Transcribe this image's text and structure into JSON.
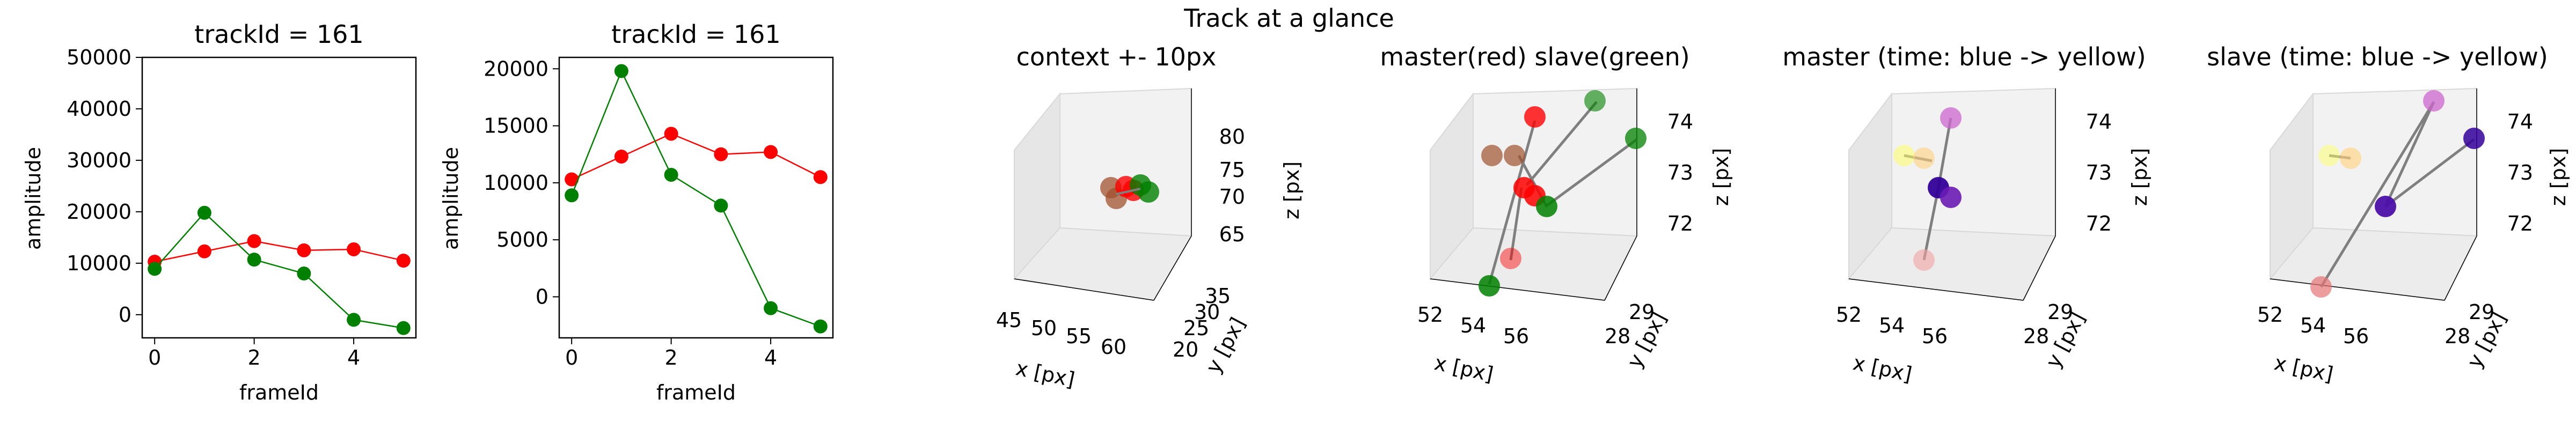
{
  "suptitle": "Track at a glance",
  "colors": {
    "master": "#ff0000",
    "slave": "#008000",
    "time_start": "#ffff66",
    "time_mid": "#cc66cc",
    "time_end": "#330099",
    "pane": "#f2f2f2",
    "link": "#7f7f7f"
  },
  "chart_data": [
    {
      "type": "line",
      "title": "trackId = 161",
      "xlabel": "frameId",
      "ylabel": "amplitude",
      "x": [
        0,
        1,
        2,
        3,
        4,
        5
      ],
      "xticks": [
        "0",
        "2",
        "4"
      ],
      "yticks": [
        "0",
        "10000",
        "20000",
        "30000",
        "40000",
        "50000"
      ],
      "xlim": [
        -0.25,
        5.25
      ],
      "ylim": [
        -4500,
        50000
      ],
      "series": [
        {
          "color": "#ff0000",
          "values": [
            10300,
            12300,
            14300,
            12500,
            12700,
            10500
          ]
        },
        {
          "color": "#008000",
          "values": [
            8900,
            19800,
            10700,
            8000,
            -1000,
            -2600
          ]
        }
      ]
    },
    {
      "type": "line",
      "title": "trackId = 161",
      "xlabel": "frameId",
      "ylabel": "amplitude",
      "x": [
        0,
        1,
        2,
        3,
        4,
        5
      ],
      "xticks": [
        "0",
        "2",
        "4"
      ],
      "yticks": [
        "0",
        "5000",
        "10000",
        "15000",
        "20000"
      ],
      "xlim": [
        -0.25,
        5.25
      ],
      "ylim": [
        -3600,
        21000
      ],
      "series": [
        {
          "color": "#ff0000",
          "values": [
            10300,
            12300,
            14300,
            12500,
            12700,
            10500
          ]
        },
        {
          "color": "#008000",
          "values": [
            8900,
            19800,
            10700,
            8000,
            -1000,
            -2600
          ]
        }
      ]
    },
    {
      "type": "scatter",
      "title": "context +- 10px",
      "xlabel": "x [px]",
      "ylabel": "y [px]",
      "zlabel": "z [px]",
      "xticks": [
        "45",
        "50",
        "55",
        "60"
      ],
      "yticks": [
        "20",
        "25",
        "30",
        "35"
      ],
      "zticks": [
        "65",
        "70",
        "75",
        "80"
      ]
    },
    {
      "type": "scatter",
      "title": "master(red) slave(green)",
      "xlabel": "x [px]",
      "ylabel": "y [px]",
      "zlabel": "z [px]",
      "xticks": [
        "52",
        "54",
        "56"
      ],
      "yticks": [
        "28",
        "29"
      ],
      "zticks": [
        "72",
        "73",
        "74"
      ]
    },
    {
      "type": "scatter",
      "title": "master (time: blue -> yellow)",
      "xlabel": "x [px]",
      "ylabel": "y [px]",
      "zlabel": "z [px]",
      "xticks": [
        "52",
        "54",
        "56"
      ],
      "yticks": [
        "28",
        "29"
      ],
      "zticks": [
        "72",
        "73",
        "74"
      ]
    },
    {
      "type": "scatter",
      "title": "slave (time: blue -> yellow)",
      "xlabel": "x [px]",
      "ylabel": "y [px]",
      "zlabel": "z [px]",
      "xticks": [
        "52",
        "54",
        "56"
      ],
      "yticks": [
        "28",
        "29"
      ],
      "zticks": [
        "72",
        "73",
        "74"
      ]
    }
  ]
}
